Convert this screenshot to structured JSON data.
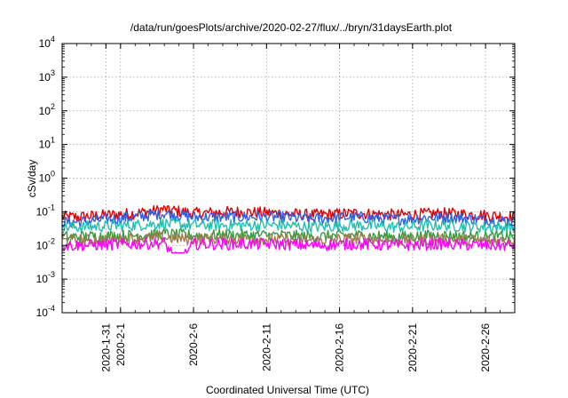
{
  "chart_data": {
    "type": "line",
    "title": "/data/run/goesPlots/archive/2020-02-27/flux/../bryn/31daysEarth.plot",
    "xlabel": "Coordinated Universal Time (UTC)",
    "ylabel": "cSv/day",
    "y_scale": "log",
    "ylim": [
      0.0001,
      10000
    ],
    "xlim": [
      "2020-01-28",
      "2020-02-28"
    ],
    "y_ticks": [
      {
        "value": 0.0001,
        "base": "10",
        "exp": "-4"
      },
      {
        "value": 0.001,
        "base": "10",
        "exp": "-3"
      },
      {
        "value": 0.01,
        "base": "10",
        "exp": "-2"
      },
      {
        "value": 0.1,
        "base": "10",
        "exp": "-1"
      },
      {
        "value": 1,
        "base": "10",
        "exp": "0"
      },
      {
        "value": 10,
        "base": "10",
        "exp": "1"
      },
      {
        "value": 100,
        "base": "10",
        "exp": "2"
      },
      {
        "value": 1000,
        "base": "10",
        "exp": "3"
      },
      {
        "value": 10000,
        "base": "10",
        "exp": "4"
      }
    ],
    "x_ticks": [
      {
        "date": "2020-01-31",
        "label": "2020-1-31"
      },
      {
        "date": "2020-02-01",
        "label": "2020-2-1"
      },
      {
        "date": "2020-02-06",
        "label": "2020-2-6"
      },
      {
        "date": "2020-02-11",
        "label": "2020-2-11"
      },
      {
        "date": "2020-02-16",
        "label": "2020-2-16"
      },
      {
        "date": "2020-02-21",
        "label": "2020-2-21"
      },
      {
        "date": "2020-02-26",
        "label": "2020-2-26"
      }
    ],
    "grid": true,
    "legend": "none",
    "series": [
      {
        "color": "#e00000",
        "range": [
          0.04,
          0.15
        ],
        "dates": [
          "2020-01-29",
          "2020-02-02",
          "2020-02-04",
          "2020-02-06",
          "2020-02-09",
          "2020-02-12",
          "2020-02-14",
          "2020-02-17",
          "2020-02-20",
          "2020-02-23",
          "2020-02-26",
          "2020-02-28"
        ],
        "values": [
          0.07,
          0.09,
          0.12,
          0.09,
          0.1,
          0.09,
          0.08,
          0.09,
          0.08,
          0.09,
          0.08,
          0.07
        ]
      },
      {
        "color": "#3060e0",
        "range": [
          0.03,
          0.12
        ],
        "dates": [
          "2020-01-29",
          "2020-02-02",
          "2020-02-04",
          "2020-02-06",
          "2020-02-09",
          "2020-02-12",
          "2020-02-14",
          "2020-02-17",
          "2020-02-20",
          "2020-02-23",
          "2020-02-26",
          "2020-02-28"
        ],
        "values": [
          0.05,
          0.07,
          0.09,
          0.07,
          0.07,
          0.07,
          0.06,
          0.07,
          0.06,
          0.07,
          0.06,
          0.05
        ]
      },
      {
        "color": "#20c0b0",
        "range": [
          0.02,
          0.06
        ],
        "dates": [
          "2020-01-29",
          "2020-02-02",
          "2020-02-04",
          "2020-02-06",
          "2020-02-09",
          "2020-02-12",
          "2020-02-14",
          "2020-02-17",
          "2020-02-20",
          "2020-02-23",
          "2020-02-26",
          "2020-02-28"
        ],
        "values": [
          0.035,
          0.04,
          0.045,
          0.04,
          0.04,
          0.04,
          0.035,
          0.04,
          0.035,
          0.04,
          0.035,
          0.035
        ]
      },
      {
        "color": "#3a9a40",
        "range": [
          0.01,
          0.03
        ],
        "dates": [
          "2020-01-29",
          "2020-02-02",
          "2020-02-04",
          "2020-02-06",
          "2020-02-09",
          "2020-02-12",
          "2020-02-14",
          "2020-02-17",
          "2020-02-20",
          "2020-02-23",
          "2020-02-26",
          "2020-02-28"
        ],
        "values": [
          0.018,
          0.02,
          0.022,
          0.02,
          0.02,
          0.02,
          0.018,
          0.02,
          0.018,
          0.02,
          0.018,
          0.018
        ]
      },
      {
        "color": "#a07a50",
        "range": [
          0.008,
          0.025
        ],
        "dates": [
          "2020-01-29",
          "2020-02-02",
          "2020-02-04",
          "2020-02-06",
          "2020-02-09",
          "2020-02-12",
          "2020-02-14",
          "2020-02-17",
          "2020-02-20",
          "2020-02-23",
          "2020-02-26",
          "2020-02-28"
        ],
        "values": [
          0.014,
          0.016,
          0.017,
          0.015,
          0.016,
          0.015,
          0.014,
          0.016,
          0.014,
          0.015,
          0.014,
          0.014
        ]
      },
      {
        "color": "#ff00ff",
        "range": [
          0.006,
          0.02
        ],
        "dates": [
          "2020-01-29",
          "2020-02-02",
          "2020-02-04",
          "2020-02-05",
          "2020-02-06",
          "2020-02-09",
          "2020-02-12",
          "2020-02-14",
          "2020-02-17",
          "2020-02-20",
          "2020-02-23",
          "2020-02-26",
          "2020-02-28"
        ],
        "values": [
          0.01,
          0.011,
          0.012,
          0.003,
          0.011,
          0.011,
          0.011,
          0.01,
          0.011,
          0.01,
          0.011,
          0.01,
          0.01
        ]
      }
    ]
  }
}
